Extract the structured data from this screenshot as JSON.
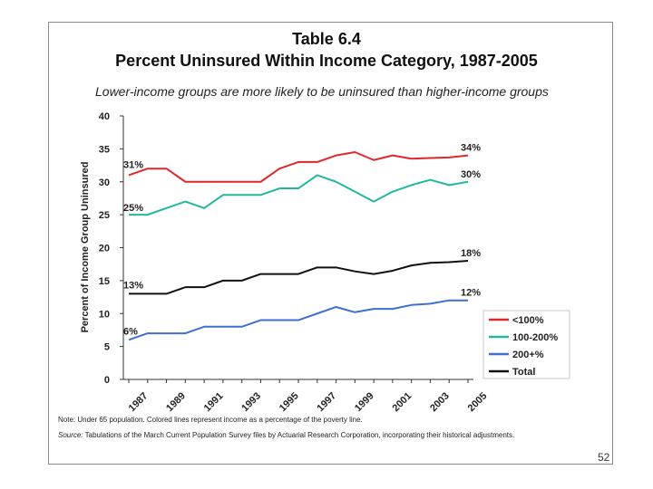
{
  "slide": {
    "title_line1": "Table 6.4",
    "title_line2": "Percent Uninsured Within Income Category, 1987-2005",
    "subtitle": "Lower-income groups are more likely to be uninsured than higher-income groups",
    "note": "Note: Under 65 population. Colored lines represent income as a percentage of the poverty line.",
    "source_label": "Source:",
    "source_text": "Tabulations of the March Current Population Survey files by Actuarial Research Corporation, incorporating their historical adjustments.",
    "page_number": "52"
  },
  "chart_data": {
    "type": "line",
    "title": "Percent Uninsured Within Income Category, 1987-2005",
    "xlabel": "",
    "ylabel": "Percent of Income Group Uninsured",
    "ylim": [
      0,
      40
    ],
    "yticks": [
      0,
      5,
      10,
      15,
      20,
      25,
      30,
      35,
      40
    ],
    "x": [
      1987,
      1988,
      1989,
      1990,
      1991,
      1992,
      1993,
      1994,
      1995,
      1996,
      1997,
      1998,
      1999,
      2000,
      2001,
      2002,
      2003,
      2004,
      2005
    ],
    "xticks": [
      "1987",
      "1989",
      "1991",
      "1993",
      "1995",
      "1997",
      "1999",
      "2001",
      "2003",
      "2005"
    ],
    "legend_position": "right",
    "series": [
      {
        "name": "<100%",
        "color": "#e0282c",
        "values": [
          31,
          32,
          32,
          30,
          30,
          30,
          30,
          30,
          32,
          33,
          33,
          34,
          34.5,
          33.3,
          34,
          33.5,
          33.6,
          33.7,
          34
        ],
        "start_label": "31%",
        "end_label": "34%"
      },
      {
        "name": "100-200%",
        "color": "#22b89a",
        "values": [
          25,
          25,
          26,
          27,
          26,
          28,
          28,
          28,
          29,
          29,
          31,
          30,
          28.5,
          27,
          28.5,
          29.5,
          30.3,
          29.5,
          30
        ],
        "start_label": "25%",
        "end_label": "30%"
      },
      {
        "name": "200+%",
        "color": "#3f6fd0",
        "values": [
          6,
          7,
          7,
          7,
          8,
          8,
          8,
          9,
          9,
          9,
          10,
          11,
          10.2,
          10.7,
          10.7,
          11.3,
          11.5,
          12,
          12
        ],
        "start_label": "6%",
        "end_label": "12%"
      },
      {
        "name": "Total",
        "color": "#111111",
        "values": [
          13,
          13,
          13,
          14,
          14,
          15,
          15,
          16,
          16,
          16,
          17,
          17,
          16.4,
          16,
          16.5,
          17.3,
          17.7,
          17.8,
          18
        ],
        "start_label": "13%",
        "end_label": "18%"
      }
    ]
  }
}
